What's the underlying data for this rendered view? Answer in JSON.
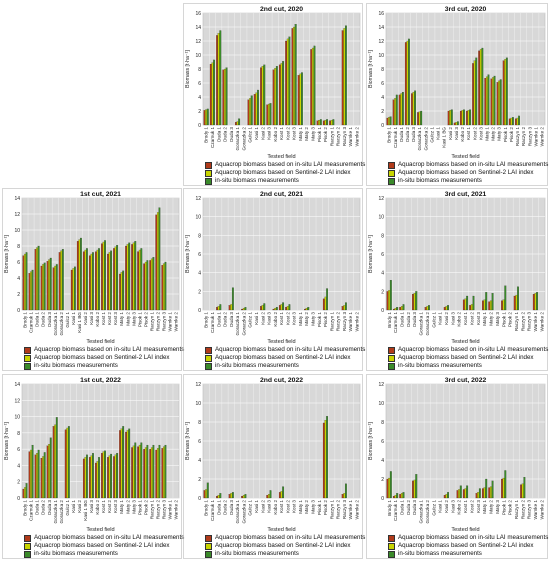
{
  "legend": {
    "aquacrop_lai": "Aquacrop biomass based on in-situ LAI measurements",
    "aquacrop_s2": "Aquacrop biomass based on Sentinel-2 LAI index",
    "insitu": "in-situ biomass measurements"
  },
  "colors": {
    "aquacrop_lai": "#b03a1a",
    "aquacrop_s2": "#c8d400",
    "insitu": "#3a8a2a",
    "plot_bg": "#d8d8d8",
    "grid": "#ffffff"
  },
  "chart_data": [
    {
      "id": "p2020c2",
      "type": "bar",
      "title": "2nd cut, 2020",
      "xlabel": "Tested field",
      "ylabel": "Biomass [t·ha⁻¹]",
      "ylim": [
        0,
        16
      ],
      "yticks": [
        0,
        2,
        4,
        6,
        8,
        10,
        12,
        14,
        16
      ],
      "categories": [
        "Brody 1",
        "Czarnuk 1",
        "Duda 1",
        "Duda 2",
        "Duda 3",
        "Goraczka 1",
        "Goraczka 2",
        "Gulcz 1",
        "Kasi 1",
        "Kasi 2",
        "Kasi 3",
        "Kobo 2",
        "Kost 1",
        "Kost 2",
        "Kost 3",
        "Maty 1",
        "Maty 2",
        "Maty 3",
        "Pisok 1",
        "Pisok 2",
        "Raczyn 1",
        "Raczyn 2",
        "Raczyn 3",
        "Warnke 1",
        "Warnke 2"
      ],
      "series": [
        {
          "name": "Aquacrop biomass based on in-situ LAI measurements",
          "values": [
            2.1,
            8.7,
            12.8,
            7.9,
            0,
            0.4,
            0,
            3.6,
            4.4,
            8.2,
            2.9,
            7.9,
            8.6,
            12.0,
            13.8,
            7.1,
            0,
            10.8,
            0.6,
            0.6,
            0.6,
            0,
            13.5,
            0,
            0
          ]
        },
        {
          "name": "Aquacrop biomass based on Sentinel-2 LAI index",
          "values": [
            2.2,
            8.9,
            13.1,
            8.0,
            0,
            0.5,
            0,
            3.8,
            4.6,
            8.4,
            3.0,
            8.1,
            8.8,
            12.3,
            14.0,
            7.3,
            0,
            11.0,
            0.7,
            0.7,
            0.7,
            0,
            13.8,
            0,
            0
          ]
        },
        {
          "name": "in-situ biomass measurements",
          "values": [
            2.3,
            9.3,
            13.5,
            8.2,
            0,
            0.9,
            0,
            4.2,
            5.0,
            8.6,
            3.1,
            8.4,
            9.1,
            12.6,
            14.4,
            7.5,
            0,
            11.3,
            0.8,
            0.8,
            0.8,
            0,
            14.2,
            0,
            0
          ]
        }
      ]
    },
    {
      "id": "p2020c3",
      "type": "bar",
      "title": "3rd cut, 2020",
      "xlabel": "Tested field",
      "ylabel": "Biomass [t·ha⁻¹]",
      "ylim": [
        0,
        16
      ],
      "yticks": [
        0,
        2,
        4,
        6,
        8,
        10,
        12,
        14,
        16
      ],
      "categories": [
        "Brody 1",
        "Czarnuk 1",
        "Duda 1",
        "Duda 2",
        "Duda 3",
        "Goraczka 1",
        "Goraczka 2",
        "Gulcz 1",
        "Kasi 1",
        "Kasi 1 BG",
        "Kasi 2",
        "Kasi 3",
        "Kobo 2",
        "Kost 1",
        "Kost 2",
        "Kost 3",
        "Maty 1",
        "Maty 2",
        "Maty 3",
        "Pisok 1",
        "Pisok 2",
        "Raczyn 1",
        "Raczyn 2",
        "Raczyn 3",
        "Warnke 1",
        "Warnke 2"
      ],
      "series": [
        {
          "name": "Aquacrop biomass based on in-situ LAI measurements",
          "values": [
            1.0,
            3.6,
            4.3,
            11.8,
            4.5,
            1.8,
            0,
            0,
            0,
            0,
            2.0,
            0.3,
            2.0,
            2.0,
            8.8,
            10.6,
            6.7,
            6.6,
            6.1,
            9.2,
            0.9,
            0.9,
            0,
            0,
            0,
            0
          ]
        },
        {
          "name": "Aquacrop biomass based on Sentinel-2 LAI index",
          "values": [
            1.1,
            3.8,
            4.5,
            12.0,
            4.7,
            1.9,
            0,
            0,
            0,
            0,
            2.1,
            0.4,
            2.1,
            2.1,
            9.2,
            10.8,
            6.9,
            6.8,
            6.3,
            9.4,
            1.0,
            1.0,
            0,
            0,
            0,
            0
          ]
        },
        {
          "name": "in-situ biomass measurements",
          "values": [
            1.2,
            4.3,
            4.7,
            12.3,
            4.9,
            2.0,
            0,
            0,
            0,
            0,
            2.2,
            0.5,
            2.2,
            2.2,
            9.6,
            11.0,
            7.2,
            7.0,
            6.5,
            9.6,
            1.1,
            1.3,
            0,
            0,
            0,
            0
          ]
        }
      ]
    },
    {
      "id": "p2021c1",
      "type": "bar",
      "title": "1st cut, 2021",
      "xlabel": "Tested field",
      "ylabel": "Biomass [t·ha⁻¹]",
      "ylim": [
        0,
        14
      ],
      "yticks": [
        0,
        2,
        4,
        6,
        8,
        10,
        12,
        14
      ],
      "categories": [
        "Brody 1",
        "Czarnuk 1",
        "Duda 1",
        "Duda 2",
        "Duda 3",
        "Goraczka 1",
        "Goraczka 2",
        "Gulcz 1",
        "Kasi 1",
        "Kasi 1 BG",
        "Kasi 2",
        "Kasi 3",
        "Kobo 2",
        "Kost 1",
        "Kost 2",
        "Kost 3",
        "Maty 1",
        "Maty 2",
        "Maty 3",
        "Pisok 1",
        "Pisok 2",
        "Raczyn 1",
        "Raczyn 2",
        "Raczyn 3",
        "Warnke 1",
        "Warnke 2"
      ],
      "series": [
        {
          "name": "Aquacrop biomass based on in-situ LAI measurements",
          "values": [
            6.8,
            4.6,
            7.6,
            5.5,
            6.1,
            5.3,
            7.2,
            0,
            5.0,
            8.6,
            7.3,
            6.8,
            7.3,
            8.3,
            7.0,
            7.7,
            4.5,
            8.0,
            8.2,
            7.3,
            5.8,
            6.2,
            11.9,
            5.6,
            0,
            0
          ]
        },
        {
          "name": "Aquacrop biomass based on Sentinel-2 LAI index",
          "values": [
            7.0,
            4.8,
            7.8,
            5.7,
            6.3,
            5.5,
            7.4,
            0,
            5.2,
            8.8,
            7.5,
            7.0,
            7.5,
            8.5,
            7.2,
            7.9,
            4.7,
            8.2,
            8.4,
            7.5,
            6.0,
            6.4,
            12.2,
            5.8,
            0,
            0
          ]
        },
        {
          "name": "in-situ biomass measurements",
          "values": [
            7.2,
            5.0,
            8.0,
            5.9,
            6.5,
            5.7,
            7.6,
            0,
            5.4,
            9.0,
            7.7,
            7.2,
            7.7,
            8.7,
            7.4,
            8.1,
            4.9,
            8.4,
            8.6,
            7.7,
            6.2,
            6.6,
            12.8,
            6.0,
            0,
            0
          ]
        }
      ]
    },
    {
      "id": "p2021c2",
      "type": "bar",
      "title": "2nd cut, 2021",
      "xlabel": "Tested field",
      "ylabel": "Biomass [t·ha⁻¹]",
      "ylim": [
        0,
        12
      ],
      "yticks": [
        0,
        2,
        4,
        6,
        8,
        10,
        12
      ],
      "categories": [
        "Brody 1",
        "Czarnuk 1",
        "Duda 1",
        "Duda 2",
        "Duda 3",
        "Goraczka 1",
        "Goraczka 2",
        "Gulcz 1",
        "Kasi 1",
        "Kasi 2",
        "Kasi 3",
        "Kobo 2",
        "Kost 1",
        "Kost 2",
        "Kost 3",
        "Maty 1",
        "Maty 2",
        "Maty 3",
        "Pisok 1",
        "Pisok 2",
        "Raczyn 1",
        "Raczyn 2",
        "Raczyn 3",
        "Warnke 1",
        "Warnke 2"
      ],
      "series": [
        {
          "name": "Aquacrop biomass based on in-situ LAI measurements",
          "values": [
            0,
            0,
            0.3,
            0,
            0.5,
            0,
            0.1,
            0,
            0,
            0.4,
            0,
            0.1,
            0.5,
            0.3,
            0,
            0,
            0.1,
            0,
            0,
            1.2,
            0,
            0,
            0.4,
            0,
            0
          ]
        },
        {
          "name": "Aquacrop biomass based on Sentinel-2 LAI index",
          "values": [
            0,
            0,
            0.4,
            0,
            0.6,
            0,
            0.2,
            0,
            0,
            0.5,
            0,
            0.2,
            0.6,
            0.4,
            0,
            0,
            0.2,
            0,
            0,
            1.4,
            0,
            0,
            0.5,
            0,
            0
          ]
        },
        {
          "name": "in-situ biomass measurements",
          "values": [
            0,
            0,
            0.6,
            0,
            2.4,
            0,
            0.3,
            0,
            0,
            0.7,
            0,
            0.3,
            0.8,
            0.6,
            0,
            0,
            0.3,
            0,
            0,
            2.3,
            0,
            0,
            0.8,
            0,
            0
          ]
        }
      ]
    },
    {
      "id": "p2021c3",
      "type": "bar",
      "title": "3rd cut, 2021",
      "xlabel": "Tested field",
      "ylabel": "Biomass [t·ha⁻¹]",
      "ylim": [
        0,
        12
      ],
      "yticks": [
        0,
        2,
        4,
        6,
        8,
        10,
        12
      ],
      "categories": [
        "Brody 1",
        "Czarnuk 1",
        "Duda 1",
        "Duda 2",
        "Duda 3",
        "Goraczka 1",
        "Goraczka 2",
        "Gulcz 1",
        "Kasi 1",
        "Kasi 2",
        "Kasi 3",
        "Kobo 2",
        "Kost 1",
        "Kost 2",
        "Kost 3",
        "Maty 1",
        "Maty 2",
        "Maty 3",
        "Pisok 1",
        "Pisok 2",
        "Raczyn 1",
        "Raczyn 2",
        "Raczyn 3",
        "Warnke 1",
        "Warnke 2"
      ],
      "series": [
        {
          "name": "Aquacrop biomass based on in-situ LAI measurements",
          "values": [
            2.0,
            0.1,
            0.3,
            0,
            1.7,
            0,
            0.3,
            0,
            0,
            0.3,
            0,
            0,
            1.1,
            0.5,
            0,
            1.0,
            0.9,
            0,
            1.0,
            0,
            1.5,
            0,
            0,
            1.7,
            0
          ]
        },
        {
          "name": "Aquacrop biomass based on Sentinel-2 LAI index",
          "values": [
            2.1,
            0.2,
            0.4,
            0,
            1.8,
            0,
            0.4,
            0,
            0,
            0.4,
            0,
            0,
            1.2,
            0.6,
            0,
            1.1,
            1.0,
            0,
            1.1,
            0,
            1.6,
            0,
            0,
            1.8,
            0
          ]
        },
        {
          "name": "in-situ biomass measurements",
          "values": [
            3.2,
            0.3,
            0.6,
            0,
            2.0,
            0,
            0.5,
            0,
            0,
            0.5,
            0,
            0,
            1.5,
            1.5,
            0,
            1.9,
            1.8,
            0,
            2.6,
            0,
            2.5,
            0,
            0,
            1.9,
            0
          ]
        }
      ]
    },
    {
      "id": "p2022c1",
      "type": "bar",
      "title": "1st cut, 2022",
      "xlabel": "Tested field",
      "ylabel": "Biomass [t·ha⁻¹]",
      "ylim": [
        0,
        14
      ],
      "yticks": [
        0,
        2,
        4,
        6,
        8,
        10,
        12,
        14
      ],
      "categories": [
        "Brody 1",
        "Czarnuk 1",
        "Duda 1",
        "Duda 2",
        "Duda 3",
        "Goraczka 1",
        "Goraczka 2",
        "Gulcz 1",
        "Kasi 1",
        "Kasi 2",
        "Kasi 1 BG",
        "Kasi 3",
        "Kobo 2",
        "Kost 1",
        "Kost 2",
        "Kost 3",
        "Maty 1",
        "Maty 2",
        "Maty 3",
        "Pisok 1",
        "Pisok 2",
        "Raczyn 1",
        "Raczyn 2",
        "Raczyn 3",
        "Warnke 1",
        "Warnke 2"
      ],
      "series": [
        {
          "name": "Aquacrop biomass based on in-situ LAI measurements",
          "values": [
            1.1,
            5.7,
            5.3,
            4.9,
            6.4,
            8.8,
            0,
            8.4,
            0,
            0,
            4.8,
            5.0,
            4.3,
            5.5,
            5.0,
            5.1,
            8.3,
            8.1,
            6.2,
            6.3,
            6.0,
            6.0,
            5.9,
            6.1,
            0,
            0
          ]
        },
        {
          "name": "Aquacrop biomass based on Sentinel-2 LAI index",
          "values": [
            1.3,
            5.9,
            5.5,
            5.1,
            6.6,
            9.0,
            0,
            8.6,
            0,
            0,
            5.0,
            5.2,
            4.5,
            5.7,
            5.2,
            5.3,
            8.5,
            8.3,
            6.4,
            6.5,
            6.2,
            6.2,
            6.1,
            6.3,
            0,
            0
          ]
        },
        {
          "name": "in-situ biomass measurements",
          "values": [
            1.8,
            6.5,
            5.9,
            5.6,
            7.4,
            9.9,
            0,
            8.8,
            0,
            0,
            5.3,
            5.5,
            5.0,
            5.8,
            5.4,
            5.5,
            8.8,
            8.5,
            6.8,
            6.8,
            6.5,
            6.5,
            6.5,
            6.5,
            0,
            0
          ]
        }
      ]
    },
    {
      "id": "p2022c2",
      "type": "bar",
      "title": "2nd cut, 2022",
      "xlabel": "Tested field",
      "ylabel": "Biomass [t·ha⁻¹]",
      "ylim": [
        0,
        12
      ],
      "yticks": [
        0,
        2,
        4,
        6,
        8,
        10,
        12
      ],
      "categories": [
        "Brody 1",
        "Czarnuk 1",
        "Duda 1",
        "Duda 2",
        "Duda 3",
        "Goraczka 1",
        "Goraczka 2",
        "Gulcz 1",
        "Kasi 1",
        "Kasi 2",
        "Kasi 3",
        "Kobo 2",
        "Kost 1",
        "Kost 2",
        "Kost 3",
        "Maty 1",
        "Maty 2",
        "Maty 3",
        "Pisok 1",
        "Pisok 2",
        "Raczyn 1",
        "Raczyn 2",
        "Raczyn 3",
        "Warnke 1",
        "Warnke 2"
      ],
      "series": [
        {
          "name": "Aquacrop biomass based on in-situ LAI measurements",
          "values": [
            0.8,
            0,
            0.2,
            0,
            0.4,
            0,
            0.2,
            0,
            0,
            0,
            0.3,
            0,
            0.6,
            0,
            0,
            0,
            0,
            0,
            0,
            7.9,
            0,
            0,
            0.4,
            0,
            0
          ]
        },
        {
          "name": "Aquacrop biomass based on Sentinel-2 LAI index",
          "values": [
            0.9,
            0,
            0.3,
            0,
            0.5,
            0,
            0.3,
            0,
            0,
            0,
            0.4,
            0,
            0.7,
            0,
            0,
            0,
            0,
            0,
            0,
            8.2,
            0,
            0,
            0.5,
            0,
            0
          ]
        },
        {
          "name": "in-situ biomass measurements",
          "values": [
            1.6,
            0,
            0.5,
            0,
            0.6,
            0,
            0.4,
            0,
            0,
            0,
            0.8,
            0,
            1.2,
            0,
            0,
            0,
            0,
            0,
            0,
            8.6,
            0,
            0,
            1.5,
            0,
            0
          ]
        }
      ]
    },
    {
      "id": "p2022c3",
      "type": "bar",
      "title": "3rd cut, 2022",
      "xlabel": "Tested field",
      "ylabel": "Biomass [t·ha⁻¹]",
      "ylim": [
        0,
        12
      ],
      "yticks": [
        0,
        2,
        4,
        6,
        8,
        10,
        12
      ],
      "categories": [
        "Brody 1",
        "Czarnuk 1",
        "Duda 1",
        "Duda 2",
        "Duda 3",
        "Goraczka 1",
        "Goraczka 2",
        "Gulcz 1",
        "Kasi 1",
        "Kasi 2",
        "Kasi 3",
        "Kobo 2",
        "Kost 1",
        "Kost 2",
        "Kost 3",
        "Maty 1",
        "Maty 2",
        "Maty 3",
        "Pisok 1",
        "Pisok 2",
        "Raczyn 1",
        "Raczyn 2",
        "Raczyn 3",
        "Warnke 1",
        "Warnke 2"
      ],
      "series": [
        {
          "name": "Aquacrop biomass based on in-situ LAI measurements",
          "values": [
            2.0,
            0.2,
            0.4,
            0,
            1.8,
            0,
            0,
            0,
            0,
            0.3,
            0,
            0.8,
            0.9,
            0,
            0.5,
            1.0,
            1.1,
            0,
            2.0,
            0,
            0,
            1.4,
            0,
            0,
            0
          ]
        },
        {
          "name": "Aquacrop biomass based on Sentinel-2 LAI index",
          "values": [
            2.1,
            0.3,
            0.5,
            0,
            1.9,
            0,
            0,
            0,
            0,
            0.4,
            0,
            0.9,
            1.0,
            0,
            0.6,
            1.1,
            1.2,
            0,
            2.1,
            0,
            0,
            1.5,
            0,
            0,
            0
          ]
        },
        {
          "name": "in-situ biomass measurements",
          "values": [
            2.8,
            0.5,
            0.6,
            0,
            2.5,
            0,
            0,
            0,
            0,
            0.6,
            0,
            1.3,
            1.3,
            0,
            1.0,
            2.0,
            1.8,
            0,
            2.9,
            0,
            0,
            2.2,
            0,
            0,
            0
          ]
        }
      ]
    }
  ]
}
